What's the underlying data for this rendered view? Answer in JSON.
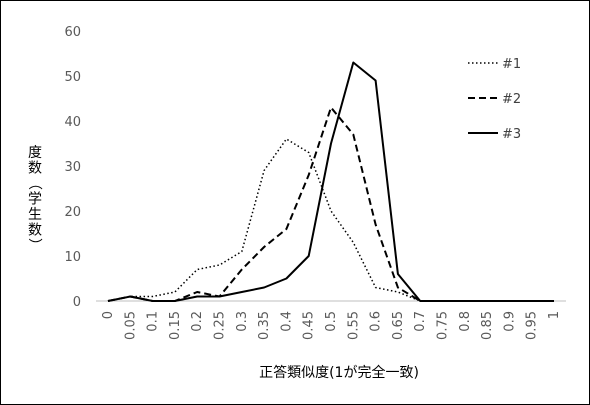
{
  "chart_data": {
    "type": "line",
    "title": "",
    "xlabel": "正答類似度(1が完全一致)",
    "ylabel_chars": [
      "度",
      "数",
      "（",
      "学",
      "生",
      "数",
      "）"
    ],
    "x": [
      "0",
      "0.05",
      "0.1",
      "0.15",
      "0.2",
      "0.25",
      "0.3",
      "0.35",
      "0.4",
      "0.45",
      "0.5",
      "0.55",
      "0.6",
      "0.65",
      "0.7",
      "0.75",
      "0.8",
      "0.85",
      "0.9",
      "0.95",
      "1"
    ],
    "ylim": [
      0,
      60
    ],
    "yticks": [
      "0",
      "10",
      "20",
      "30",
      "40",
      "50",
      "60"
    ],
    "grid": false,
    "legend_position": "right",
    "series": [
      {
        "name": "#1",
        "style": "dotted",
        "color": "#000000",
        "values": [
          0,
          1,
          1,
          2,
          7,
          8,
          11,
          29,
          36,
          33,
          20,
          13,
          3,
          2,
          0,
          0,
          0,
          0,
          0,
          0,
          0
        ]
      },
      {
        "name": "#2",
        "style": "dashed",
        "color": "#000000",
        "values": [
          0,
          1,
          0,
          0,
          2,
          1,
          7,
          12,
          16,
          28,
          43,
          37,
          17,
          3,
          0,
          0,
          0,
          0,
          0,
          0,
          0
        ]
      },
      {
        "name": "#3",
        "style": "solid",
        "color": "#000000",
        "values": [
          0,
          1,
          0,
          0,
          1,
          1,
          2,
          3,
          5,
          10,
          35,
          53,
          49,
          6,
          0,
          0,
          0,
          0,
          0,
          0,
          0
        ]
      }
    ],
    "axis_color": "#bfbfbf"
  }
}
